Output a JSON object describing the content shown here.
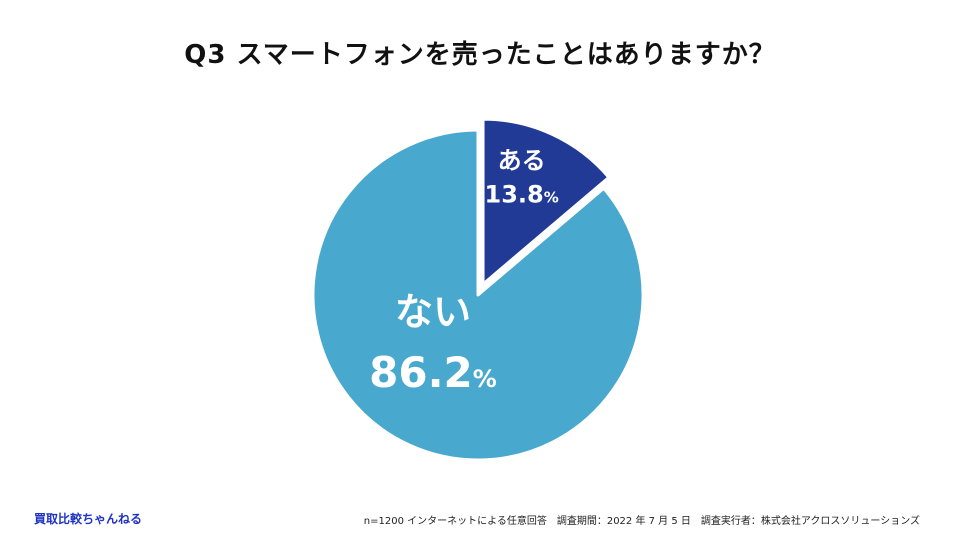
{
  "title": "Q3  スマートフォンを売ったことはありますか？",
  "brand": "買取比較ちゃんねる",
  "footnote": "n=1200 インターネットによる任意回答　調査期間：2022 年 7 月 5 日　調査実行者：株式会社アクロスソリューションズ",
  "chart_data": {
    "type": "pie",
    "title": "Q3  スマートフォンを売ったことはありますか？",
    "unit": "%",
    "slices": [
      {
        "label": "ある",
        "value": 13.8,
        "value_text": "13.8",
        "color": "#213a96",
        "exploded": true
      },
      {
        "label": "ない",
        "value": 86.2,
        "value_text": "86.2",
        "color": "#48a8cd",
        "exploded": false
      }
    ]
  }
}
